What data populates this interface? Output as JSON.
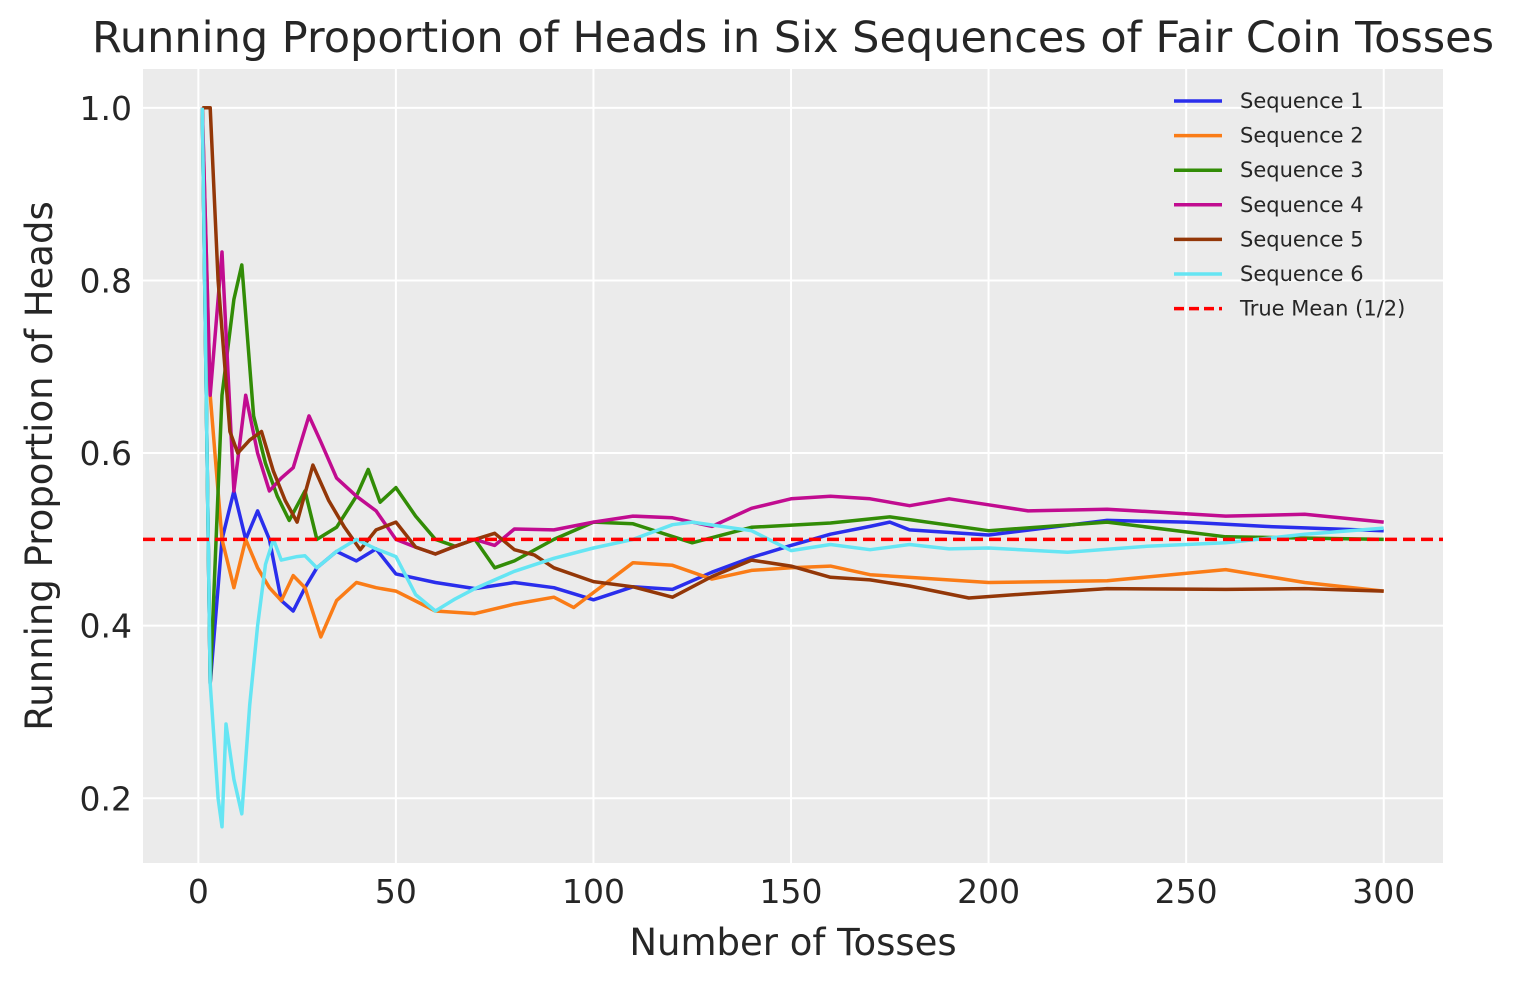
{
  "chart_data": {
    "type": "line",
    "title": "Running Proportion of Heads in Six Sequences of Fair Coin Tosses",
    "xlabel": "Number of Tosses",
    "ylabel": "Running Proportion of Heads",
    "xlim": [
      -14,
      315
    ],
    "ylim": [
      0.125,
      1.045
    ],
    "xticks": [
      0,
      50,
      100,
      150,
      200,
      250,
      300
    ],
    "yticks": [
      0.2,
      0.4,
      0.6,
      0.8,
      1.0
    ],
    "ytick_labels": [
      "0.2",
      "0.4",
      "0.6",
      "0.8",
      "1.0"
    ],
    "grid": true,
    "legend_position": "top-right",
    "background": "#ebebeb",
    "series": [
      {
        "name": "Sequence 1",
        "color": "#2a2eec",
        "x": [
          1,
          3,
          6,
          9,
          12,
          15,
          18,
          21,
          24,
          27,
          30,
          35,
          40,
          45,
          50,
          60,
          70,
          80,
          90,
          100,
          110,
          120,
          130,
          140,
          150,
          160,
          170,
          175,
          180,
          200,
          230,
          250,
          270,
          300
        ],
        "y": [
          1.0,
          0.333,
          0.5,
          0.556,
          0.5,
          0.533,
          0.5,
          0.429,
          0.417,
          0.444,
          0.467,
          0.486,
          0.475,
          0.489,
          0.46,
          0.45,
          0.443,
          0.45,
          0.444,
          0.43,
          0.445,
          0.442,
          0.462,
          0.479,
          0.493,
          0.506,
          0.515,
          0.52,
          0.511,
          0.505,
          0.522,
          0.52,
          0.515,
          0.51
        ]
      },
      {
        "name": "Sequence 2",
        "color": "#fa7c17",
        "x": [
          1,
          3,
          6,
          9,
          12,
          15,
          18,
          21,
          24,
          27,
          31,
          35,
          40,
          45,
          50,
          60,
          70,
          80,
          90,
          95,
          110,
          120,
          130,
          140,
          150,
          160,
          170,
          200,
          230,
          260,
          280,
          300
        ],
        "y": [
          1.0,
          0.667,
          0.5,
          0.444,
          0.5,
          0.467,
          0.444,
          0.429,
          0.458,
          0.444,
          0.387,
          0.429,
          0.45,
          0.444,
          0.44,
          0.417,
          0.414,
          0.425,
          0.433,
          0.421,
          0.473,
          0.47,
          0.454,
          0.464,
          0.467,
          0.469,
          0.459,
          0.45,
          0.452,
          0.465,
          0.45,
          0.44
        ]
      },
      {
        "name": "Sequence 3",
        "color": "#328c06",
        "x": [
          1,
          3,
          6,
          9,
          11,
          14,
          17,
          20,
          23,
          27,
          30,
          35,
          40,
          43,
          46,
          50,
          55,
          60,
          65,
          70,
          75,
          80,
          90,
          100,
          110,
          125,
          140,
          160,
          175,
          200,
          230,
          260,
          300
        ],
        "y": [
          1.0,
          0.333,
          0.667,
          0.778,
          0.818,
          0.643,
          0.588,
          0.55,
          0.522,
          0.556,
          0.5,
          0.514,
          0.55,
          0.581,
          0.543,
          0.56,
          0.527,
          0.5,
          0.492,
          0.5,
          0.467,
          0.475,
          0.5,
          0.52,
          0.518,
          0.496,
          0.514,
          0.519,
          0.526,
          0.51,
          0.52,
          0.503,
          0.5
        ]
      },
      {
        "name": "Sequence 4",
        "color": "#c10c90",
        "x": [
          1,
          3,
          6,
          9,
          12,
          15,
          18,
          21,
          24,
          28,
          31,
          35,
          40,
          45,
          50,
          55,
          60,
          65,
          70,
          75,
          80,
          90,
          100,
          110,
          120,
          130,
          140,
          150,
          160,
          170,
          180,
          190,
          200,
          210,
          230,
          260,
          280,
          300
        ],
        "y": [
          1.0,
          0.667,
          0.833,
          0.556,
          0.667,
          0.6,
          0.556,
          0.571,
          0.583,
          0.643,
          0.613,
          0.571,
          0.55,
          0.533,
          0.5,
          0.491,
          0.483,
          0.492,
          0.5,
          0.493,
          0.512,
          0.511,
          0.52,
          0.527,
          0.525,
          0.515,
          0.536,
          0.547,
          0.55,
          0.547,
          0.539,
          0.547,
          0.54,
          0.533,
          0.535,
          0.527,
          0.529,
          0.52
        ]
      },
      {
        "name": "Sequence 5",
        "color": "#933708",
        "x": [
          1,
          3,
          5,
          8,
          10,
          13,
          16,
          19,
          22,
          25,
          29,
          33,
          37,
          41,
          45,
          50,
          55,
          60,
          65,
          70,
          75,
          80,
          85,
          90,
          100,
          110,
          120,
          130,
          140,
          150,
          160,
          170,
          180,
          195,
          210,
          230,
          260,
          280,
          300
        ],
        "y": [
          1.0,
          1.0,
          0.8,
          0.625,
          0.6,
          0.615,
          0.625,
          0.579,
          0.545,
          0.52,
          0.586,
          0.545,
          0.514,
          0.488,
          0.511,
          0.52,
          0.491,
          0.483,
          0.492,
          0.5,
          0.507,
          0.488,
          0.482,
          0.467,
          0.451,
          0.445,
          0.433,
          0.457,
          0.476,
          0.469,
          0.456,
          0.453,
          0.446,
          0.432,
          0.437,
          0.443,
          0.442,
          0.443,
          0.44
        ]
      },
      {
        "name": "Sequence 6",
        "color": "#65e5f3",
        "x": [
          1,
          3,
          5,
          6,
          7,
          9,
          11,
          13,
          15,
          17,
          19,
          21,
          23,
          25,
          27,
          30,
          35,
          40,
          45,
          50,
          55,
          60,
          65,
          70,
          75,
          80,
          90,
          100,
          110,
          120,
          125,
          140,
          150,
          160,
          170,
          180,
          190,
          200,
          220,
          240,
          260,
          280,
          300
        ],
        "y": [
          1.0,
          0.333,
          0.2,
          0.167,
          0.286,
          0.222,
          0.182,
          0.308,
          0.4,
          0.471,
          0.5,
          0.476,
          0.478,
          0.48,
          0.481,
          0.467,
          0.486,
          0.5,
          0.489,
          0.48,
          0.436,
          0.417,
          0.431,
          0.443,
          0.453,
          0.463,
          0.478,
          0.49,
          0.5,
          0.517,
          0.52,
          0.51,
          0.487,
          0.494,
          0.488,
          0.494,
          0.489,
          0.49,
          0.485,
          0.492,
          0.496,
          0.506,
          0.513
        ]
      }
    ],
    "reference_line": {
      "name": "True Mean (1/2)",
      "y": 0.5,
      "color": "#ff0000",
      "style": "dashed"
    }
  }
}
